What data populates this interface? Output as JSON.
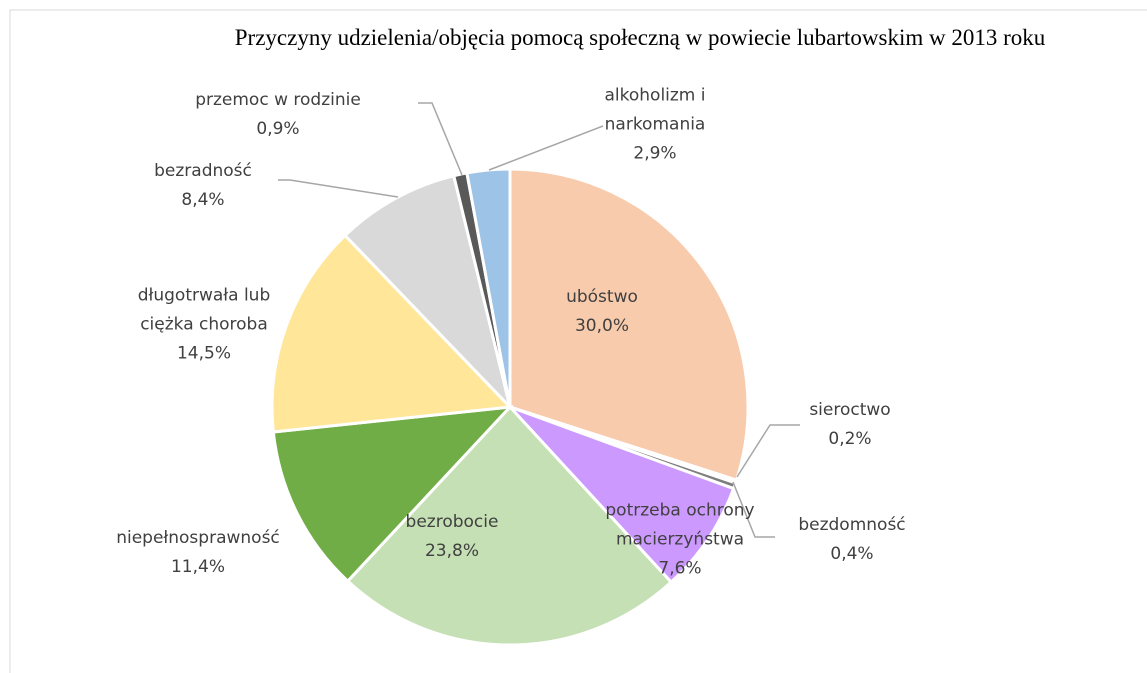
{
  "chart_data": {
    "type": "pie",
    "title": "Przyczyny udzielenia/objęcia pomocą społeczną w powiecie lubartowskim w 2013 roku",
    "categories": [
      "ubóstwo",
      "sieroctwo",
      "bezdomność",
      "potrzeba ochrony macierzyństwa",
      "bezrobocie",
      "niepełnosprawność",
      "długotrwała lub ciężka choroba",
      "bezradność",
      "przemoc w rodzinie",
      "alkoholizm i narkomania"
    ],
    "values": [
      30.0,
      0.2,
      0.4,
      7.6,
      23.8,
      11.4,
      14.5,
      8.4,
      0.9,
      2.9
    ],
    "value_labels": [
      "30,0%",
      "0,2%",
      "0,4%",
      "7,6%",
      "23,8%",
      "11,4%",
      "14,5%",
      "8,4%",
      "0,9%",
      "2,9%"
    ],
    "colors": [
      "#f8cbad",
      "#a6a6a6",
      "#7f7f7f",
      "#cc99ff",
      "#c5e0b4",
      "#70ad47",
      "#ffe699",
      "#d9d9d9",
      "#595959",
      "#9dc3e6"
    ]
  }
}
